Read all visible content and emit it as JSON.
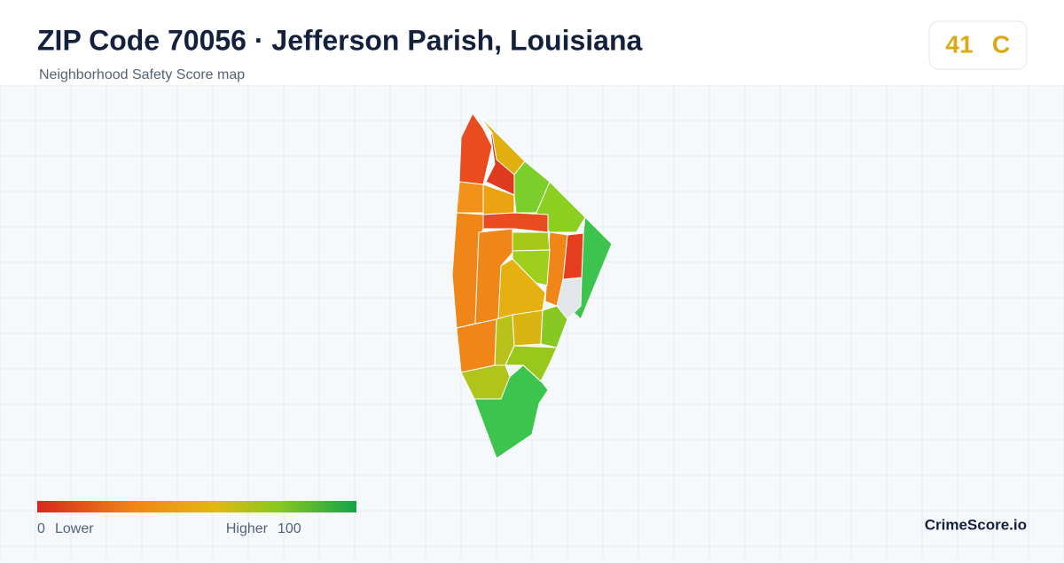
{
  "header": {
    "title": "ZIP Code 70056 · Jefferson Parish, Louisiana",
    "subtitle": "Neighborhood Safety Score map"
  },
  "score": {
    "value": "41",
    "grade": "C"
  },
  "legend": {
    "min": "0",
    "min_label": "Lower",
    "max_label": "Higher",
    "max": "100"
  },
  "brand": "CrimeScore.io"
}
